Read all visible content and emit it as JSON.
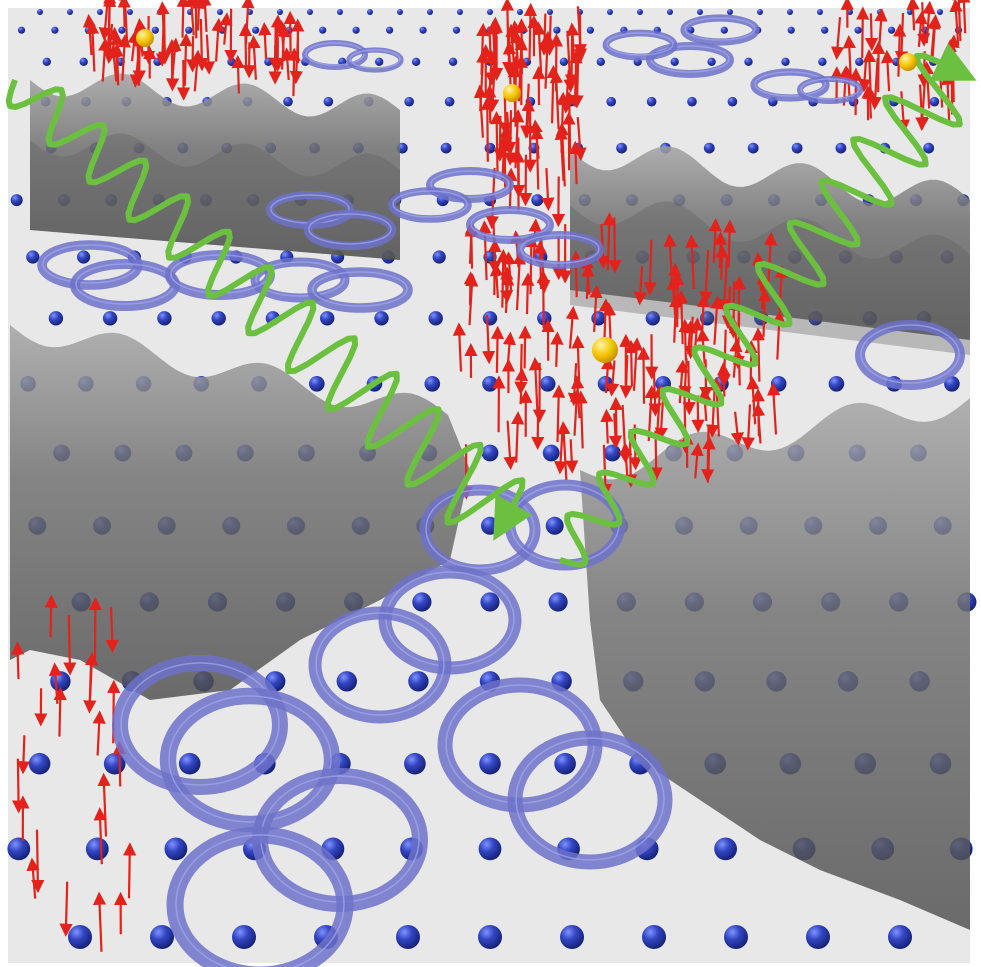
{
  "figure": {
    "kind": "3d-physics-illustration",
    "background_color": "#e9e9e9",
    "frame_color": "#ffffff",
    "lattice": {
      "rows": 16,
      "cols": 16,
      "atom_color": "#2a3fb0",
      "atom_highlight": "#6f86ee"
    },
    "surfaces": {
      "color": "#6e6e6e",
      "highlight": "#9b9b9b",
      "count": 4
    },
    "rings": {
      "color": "#6d72c9",
      "count": 30
    },
    "spin_arrows": {
      "color": "#e3221b",
      "highlight": "#ff6a5a"
    },
    "waves": {
      "color": "#6cc040",
      "count": 2
    },
    "particles": {
      "color": "#f5c400",
      "count": 4
    },
    "icons": [
      "atom-sphere",
      "vortex-ring",
      "spin-arrow",
      "wave-arrow",
      "particle-dot"
    ]
  }
}
